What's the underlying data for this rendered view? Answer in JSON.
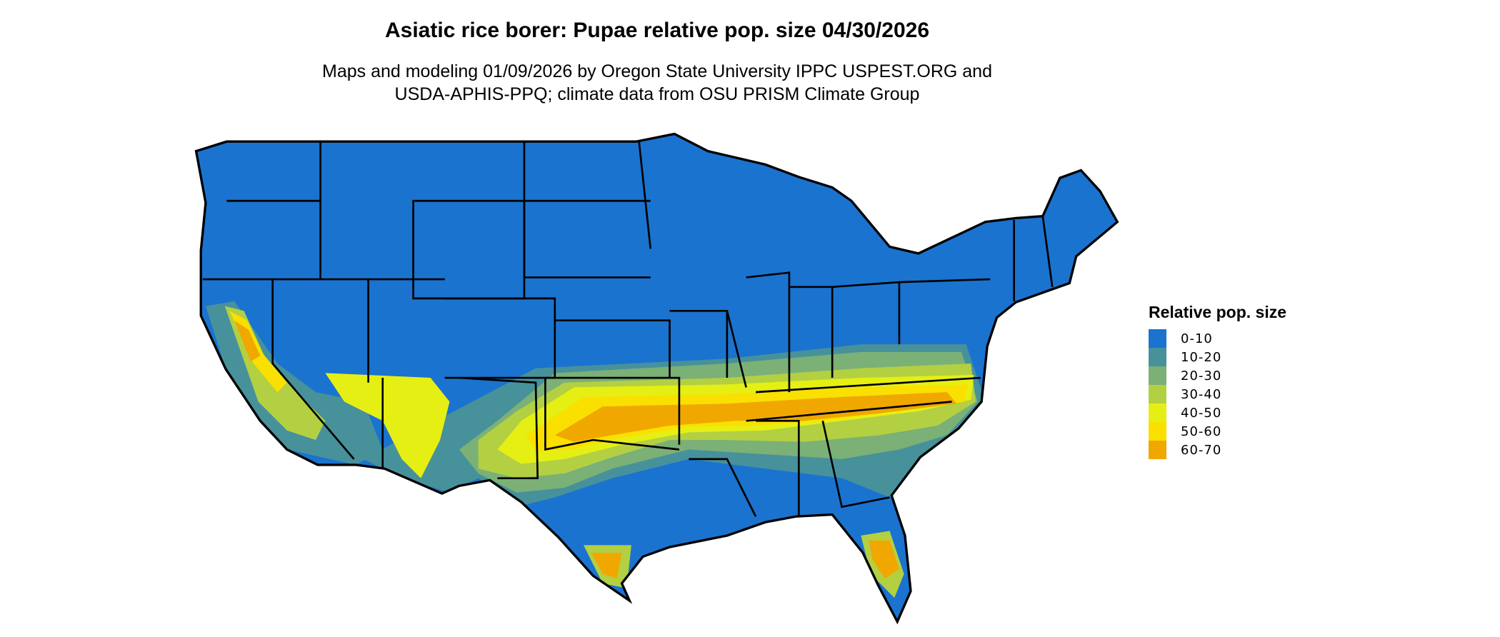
{
  "title": "Asiatic rice borer: Pupae relative pop. size 04/30/2026",
  "subtitle_lines": [
    "Maps and modeling 01/09/2026 by Oregon State University IPPC USPEST.ORG and",
    "USDA-APHIS-PPQ; climate data from OSU PRISM Climate Group"
  ],
  "chart_data": {
    "type": "heatmap",
    "region": "Contiguous United States",
    "legend": {
      "title": "Relative pop. size",
      "placement": "right",
      "items": [
        {
          "label": "0-10",
          "color": "#1a73cf"
        },
        {
          "label": "10-20",
          "color": "#47919b"
        },
        {
          "label": "20-30",
          "color": "#7bb076"
        },
        {
          "label": "30-40",
          "color": "#b3d043"
        },
        {
          "label": "40-50",
          "color": "#e6ef14"
        },
        {
          "label": "50-60",
          "color": "#fae000"
        },
        {
          "label": "60-70",
          "color": "#f0a800"
        }
      ]
    }
  }
}
